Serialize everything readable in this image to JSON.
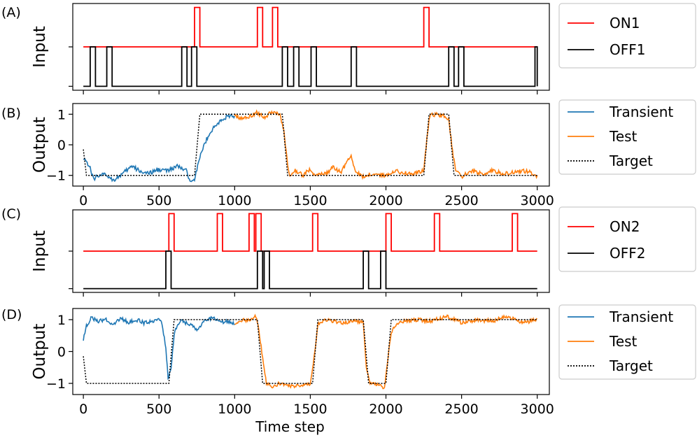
{
  "chart_data": [
    {
      "panel_label": "(A)",
      "type": "line",
      "ylabel": "Input",
      "xlim": [
        -70,
        3080
      ],
      "ylim": [
        -0.1,
        2.1
      ],
      "show_y_tick_labels": false,
      "show_x_tick_labels": false,
      "series": [
        {
          "name": "ON1",
          "color": "#ff0000",
          "style": "solid",
          "kind": "pulses",
          "base": 1,
          "height": 1,
          "pulses": [
            [
              735,
              770
            ],
            [
              1150,
              1185
            ],
            [
              1250,
              1285
            ],
            [
              2250,
              2285
            ]
          ]
        },
        {
          "name": "OFF1",
          "color": "#000000",
          "style": "solid",
          "kind": "pulses",
          "base": 0,
          "height": 1,
          "pulses": [
            [
              45,
              80
            ],
            [
              155,
              190
            ],
            [
              650,
              685
            ],
            [
              715,
              750
            ],
            [
              1315,
              1350
            ],
            [
              1390,
              1425
            ],
            [
              1505,
              1540
            ],
            [
              1770,
              1805
            ],
            [
              2415,
              2450
            ],
            [
              2480,
              2515
            ],
            [
              2985,
              3000
            ]
          ]
        }
      ],
      "legend_position": "outside-right"
    },
    {
      "panel_label": "(B)",
      "type": "line",
      "ylabel": "Output",
      "xlim": [
        -70,
        3080
      ],
      "ylim": [
        -1.35,
        1.35
      ],
      "yticks": [
        -1,
        0,
        1
      ],
      "xticks": [
        0,
        500,
        1000,
        1500,
        2000,
        2500,
        3000
      ],
      "show_x_tick_labels": true,
      "target": [
        [
          0,
          -0.15
        ],
        [
          20,
          -1
        ],
        [
          735,
          -1
        ],
        [
          770,
          1
        ],
        [
          1315,
          1
        ],
        [
          1350,
          -1
        ],
        [
          2250,
          -1
        ],
        [
          2285,
          1
        ],
        [
          2415,
          1
        ],
        [
          2450,
          -1
        ],
        [
          3000,
          -1
        ]
      ],
      "output_key": [
        [
          0,
          -0.4
        ],
        [
          40,
          -0.7
        ],
        [
          70,
          -1.15
        ],
        [
          90,
          -1.0
        ],
        [
          150,
          -0.98
        ],
        [
          200,
          -1.15
        ],
        [
          260,
          -0.95
        ],
        [
          320,
          -0.7
        ],
        [
          370,
          -0.85
        ],
        [
          430,
          -0.95
        ],
        [
          500,
          -0.8
        ],
        [
          560,
          -0.85
        ],
        [
          620,
          -0.7
        ],
        [
          680,
          -0.85
        ],
        [
          700,
          -1.15
        ],
        [
          735,
          -1.1
        ],
        [
          760,
          -0.6
        ],
        [
          790,
          -0.1
        ],
        [
          830,
          0.35
        ],
        [
          870,
          0.6
        ],
        [
          900,
          0.75
        ],
        [
          940,
          0.9
        ],
        [
          1000,
          0.95
        ],
        [
          1060,
          0.85
        ],
        [
          1100,
          0.95
        ],
        [
          1150,
          1.05
        ],
        [
          1200,
          0.9
        ],
        [
          1250,
          1.1
        ],
        [
          1300,
          1.0
        ],
        [
          1330,
          0.3
        ],
        [
          1350,
          -0.7
        ],
        [
          1370,
          -1.05
        ],
        [
          1400,
          -0.85
        ],
        [
          1450,
          -1.0
        ],
        [
          1500,
          -0.8
        ],
        [
          1530,
          -1.0
        ],
        [
          1600,
          -0.95
        ],
        [
          1650,
          -0.75
        ],
        [
          1700,
          -0.9
        ],
        [
          1770,
          -0.35
        ],
        [
          1800,
          -0.9
        ],
        [
          1850,
          -1.05
        ],
        [
          1900,
          -0.95
        ],
        [
          2000,
          -1.0
        ],
        [
          2050,
          -0.85
        ],
        [
          2100,
          -0.9
        ],
        [
          2180,
          -0.95
        ],
        [
          2250,
          -0.85
        ],
        [
          2270,
          0.2
        ],
        [
          2290,
          0.95
        ],
        [
          2330,
          1.0
        ],
        [
          2380,
          0.95
        ],
        [
          2415,
          0.85
        ],
        [
          2440,
          -0.2
        ],
        [
          2460,
          -0.85
        ],
        [
          2500,
          -1.05
        ],
        [
          2560,
          -0.85
        ],
        [
          2650,
          -0.95
        ],
        [
          2700,
          -0.85
        ],
        [
          2800,
          -0.95
        ],
        [
          2900,
          -0.85
        ],
        [
          2960,
          -0.9
        ],
        [
          3000,
          -1.05
        ]
      ],
      "noise": 0.07,
      "split_at": 1000,
      "series": [
        {
          "name": "Transient",
          "color": "#1f77b4",
          "style": "solid"
        },
        {
          "name": "Test",
          "color": "#ff7f0e",
          "style": "solid"
        },
        {
          "name": "Target",
          "color": "#000000",
          "style": "dotted"
        }
      ],
      "legend_position": "outside-right"
    },
    {
      "panel_label": "(C)",
      "type": "line",
      "ylabel": "Input",
      "xlim": [
        -70,
        3080
      ],
      "ylim": [
        -0.1,
        2.1
      ],
      "show_y_tick_labels": false,
      "show_x_tick_labels": false,
      "series": [
        {
          "name": "ON2",
          "color": "#ff0000",
          "style": "solid",
          "kind": "pulses",
          "base": 1,
          "height": 1,
          "pulses": [
            [
              565,
              600
            ],
            [
              885,
              920
            ],
            [
              1095,
              1130
            ],
            [
              1140,
              1175
            ],
            [
              1515,
              1550
            ],
            [
              2000,
              2035
            ],
            [
              2320,
              2355
            ],
            [
              2835,
              2870
            ]
          ]
        },
        {
          "name": "OFF2",
          "color": "#000000",
          "style": "solid",
          "kind": "pulses",
          "base": 0,
          "height": 1,
          "pulses": [
            [
              545,
              580
            ],
            [
              1150,
              1185
            ],
            [
              1195,
              1230
            ],
            [
              1850,
              1885
            ],
            [
              1965,
              2000
            ]
          ]
        }
      ],
      "legend_position": "outside-right"
    },
    {
      "panel_label": "(D)",
      "type": "line",
      "ylabel": "Output",
      "xlabel": "Time step",
      "xlim": [
        -70,
        3080
      ],
      "ylim": [
        -1.35,
        1.35
      ],
      "yticks": [
        -1,
        0,
        1
      ],
      "xticks": [
        0,
        500,
        1000,
        1500,
        2000,
        2500,
        3000
      ],
      "show_x_tick_labels": true,
      "target": [
        [
          0,
          -0.15
        ],
        [
          20,
          -1
        ],
        [
          565,
          -1
        ],
        [
          600,
          1
        ],
        [
          1150,
          1
        ],
        [
          1185,
          -1
        ],
        [
          1515,
          -1
        ],
        [
          1550,
          1
        ],
        [
          1850,
          1
        ],
        [
          1885,
          -1
        ],
        [
          2000,
          -1
        ],
        [
          2035,
          1
        ],
        [
          3000,
          1
        ]
      ],
      "output_key": [
        [
          0,
          0.4
        ],
        [
          20,
          0.8
        ],
        [
          50,
          1.05
        ],
        [
          100,
          0.95
        ],
        [
          150,
          1.0
        ],
        [
          200,
          0.85
        ],
        [
          250,
          1.05
        ],
        [
          300,
          0.9
        ],
        [
          350,
          1.0
        ],
        [
          400,
          0.9
        ],
        [
          450,
          0.95
        ],
        [
          500,
          1.05
        ],
        [
          520,
          0.85
        ],
        [
          545,
          0.1
        ],
        [
          560,
          -0.85
        ],
        [
          580,
          -0.5
        ],
        [
          600,
          0.5
        ],
        [
          620,
          0.85
        ],
        [
          650,
          0.95
        ],
        [
          700,
          0.85
        ],
        [
          750,
          0.7
        ],
        [
          800,
          0.95
        ],
        [
          850,
          1.05
        ],
        [
          900,
          0.95
        ],
        [
          1000,
          0.9
        ],
        [
          1050,
          1.0
        ],
        [
          1100,
          0.95
        ],
        [
          1140,
          1.1
        ],
        [
          1160,
          0.7
        ],
        [
          1185,
          -0.2
        ],
        [
          1210,
          -1.0
        ],
        [
          1250,
          -1.1
        ],
        [
          1300,
          -1.0
        ],
        [
          1400,
          -1.1
        ],
        [
          1500,
          -1.0
        ],
        [
          1530,
          0.0
        ],
        [
          1550,
          0.85
        ],
        [
          1600,
          1.0
        ],
        [
          1700,
          0.9
        ],
        [
          1800,
          0.95
        ],
        [
          1850,
          0.9
        ],
        [
          1870,
          -0.5
        ],
        [
          1890,
          -0.95
        ],
        [
          1950,
          -1.05
        ],
        [
          1990,
          -1.15
        ],
        [
          2010,
          -0.3
        ],
        [
          2035,
          0.6
        ],
        [
          2060,
          0.8
        ],
        [
          2100,
          0.95
        ],
        [
          2200,
          1.0
        ],
        [
          2300,
          0.95
        ],
        [
          2400,
          1.1
        ],
        [
          2500,
          0.9
        ],
        [
          2600,
          1.0
        ],
        [
          2700,
          0.95
        ],
        [
          2800,
          1.1
        ],
        [
          2900,
          0.9
        ],
        [
          3000,
          1.0
        ]
      ],
      "noise": 0.06,
      "split_at": 1000,
      "series": [
        {
          "name": "Transient",
          "color": "#1f77b4",
          "style": "solid"
        },
        {
          "name": "Test",
          "color": "#ff7f0e",
          "style": "solid"
        },
        {
          "name": "Target",
          "color": "#000000",
          "style": "dotted"
        }
      ],
      "legend_position": "outside-right"
    }
  ]
}
